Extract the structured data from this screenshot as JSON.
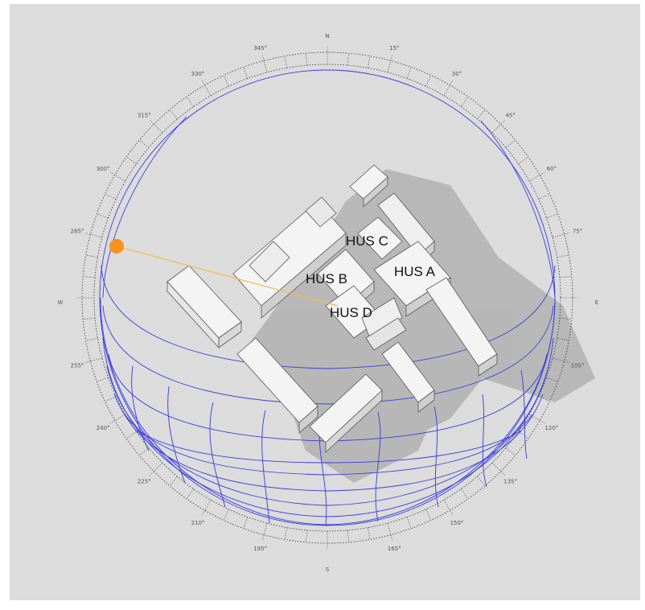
{
  "viewport": {
    "background": "#dcdcdc",
    "sun_color": "#f7931e",
    "sunpath_color": "#3a3ae0"
  },
  "compass": {
    "cardinal": {
      "north": "N",
      "east": "E",
      "south": "S",
      "west": "W"
    },
    "azimuth_ticks": [
      {
        "deg": 15,
        "label": "15°"
      },
      {
        "deg": 30,
        "label": "30°"
      },
      {
        "deg": 45,
        "label": "45°"
      },
      {
        "deg": 60,
        "label": "60°"
      },
      {
        "deg": 75,
        "label": "75°"
      },
      {
        "deg": 105,
        "label": "105°"
      },
      {
        "deg": 120,
        "label": "120°"
      },
      {
        "deg": 135,
        "label": "135°"
      },
      {
        "deg": 150,
        "label": "150°"
      },
      {
        "deg": 165,
        "label": "165°"
      },
      {
        "deg": 195,
        "label": "195°"
      },
      {
        "deg": 210,
        "label": "210°"
      },
      {
        "deg": 225,
        "label": "225°"
      },
      {
        "deg": 240,
        "label": "240°"
      },
      {
        "deg": 255,
        "label": "255°"
      },
      {
        "deg": 285,
        "label": "285°"
      },
      {
        "deg": 300,
        "label": "300°"
      },
      {
        "deg": 315,
        "label": "315°"
      },
      {
        "deg": 330,
        "label": "330°"
      },
      {
        "deg": 345,
        "label": "345°"
      }
    ]
  },
  "buildings": {
    "hus_a": "HUS A",
    "hus_b": "HUS B",
    "hus_c": "HUS C",
    "hus_d": "HUS D"
  },
  "sun": {
    "icon": "sun-position-marker-icon"
  }
}
